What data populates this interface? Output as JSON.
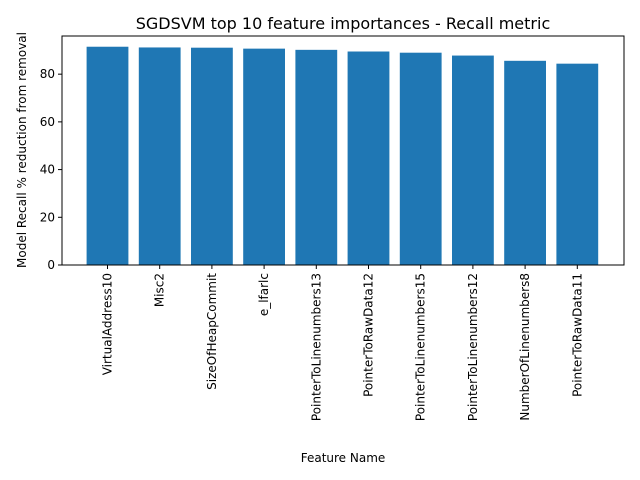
{
  "chart_data": {
    "type": "bar",
    "title": "SGDSVM top 10 feature importances - Recall metric",
    "xlabel": "Feature Name",
    "ylabel": "Model Recall % reduction from removal",
    "categories": [
      "VirtualAddress10",
      "Misc2",
      "SizeOfHeapCommit",
      "e_lfarlc",
      "PointerToLinenumbers13",
      "PointerToRawData12",
      "PointerToLinenumbers15",
      "PointerToLinenumbers12",
      "NumberOfLinenumbers8",
      "PointerToRawData11"
    ],
    "values": [
      91.5,
      91.2,
      91.1,
      90.7,
      90.2,
      89.5,
      89.0,
      87.8,
      85.6,
      84.4
    ],
    "ylim": [
      0,
      96
    ],
    "yticks": [
      0,
      20,
      40,
      60,
      80
    ],
    "grid": false,
    "legend": "none",
    "bar_color": "#1f77b4"
  }
}
